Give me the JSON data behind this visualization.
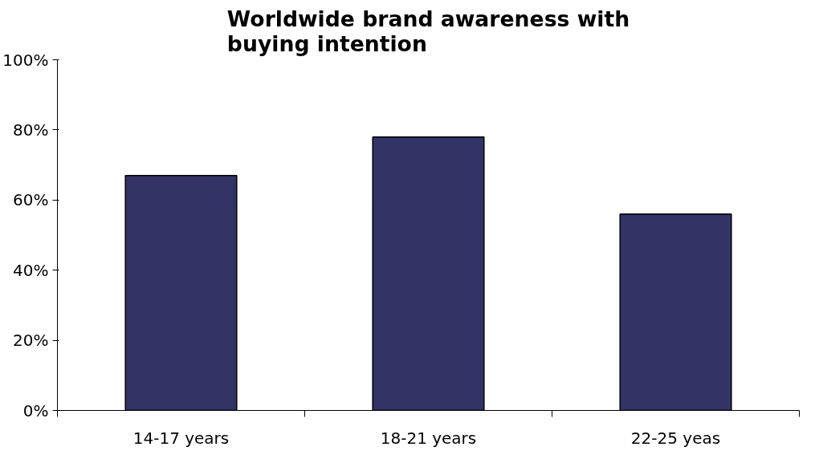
{
  "chart_data": {
    "type": "bar",
    "title": "Worldwide brand awareness with buying intention",
    "categories": [
      "14-17 years",
      "18-21 years",
      "22-25 yeas"
    ],
    "values": [
      67,
      78,
      56
    ],
    "color": "#333366",
    "ylim": [
      0,
      100
    ],
    "yticks": [
      {
        "value": 0,
        "label": "0%"
      },
      {
        "value": 20,
        "label": "20%"
      },
      {
        "value": 40,
        "label": "40%"
      },
      {
        "value": 60,
        "label": "60%"
      },
      {
        "value": 80,
        "label": "80%"
      },
      {
        "value": 100,
        "label": "100%"
      }
    ],
    "grid": false
  }
}
